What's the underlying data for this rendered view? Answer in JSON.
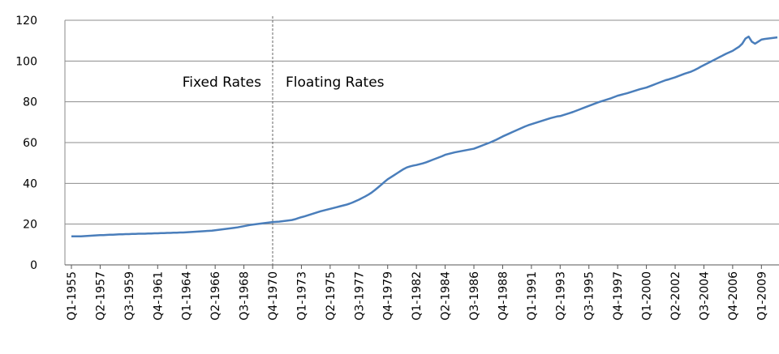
{
  "chart_data": {
    "type": "line",
    "categories": [
      "Q1-1955",
      null,
      null,
      null,
      null,
      null,
      null,
      null,
      null,
      "Q2-1957",
      null,
      null,
      null,
      null,
      null,
      null,
      null,
      null,
      "Q3-1959",
      null,
      null,
      null,
      null,
      null,
      null,
      null,
      null,
      "Q4-1961",
      null,
      null,
      null,
      null,
      null,
      null,
      null,
      null,
      "Q1-1964",
      null,
      null,
      null,
      null,
      null,
      null,
      null,
      null,
      "Q2-1966",
      null,
      null,
      null,
      null,
      null,
      null,
      null,
      null,
      "Q3-1968",
      null,
      null,
      null,
      null,
      null,
      null,
      null,
      null,
      "Q4-1970",
      null,
      null,
      null,
      null,
      null,
      null,
      null,
      null,
      "Q1-1973",
      null,
      null,
      null,
      null,
      null,
      null,
      null,
      null,
      "Q2-1975",
      null,
      null,
      null,
      null,
      null,
      null,
      null,
      null,
      "Q3-1977",
      null,
      null,
      null,
      null,
      null,
      null,
      null,
      null,
      "Q4-1979",
      null,
      null,
      null,
      null,
      null,
      null,
      null,
      null,
      "Q1-1982",
      null,
      null,
      null,
      null,
      null,
      null,
      null,
      null,
      "Q2-1984",
      null,
      null,
      null,
      null,
      null,
      null,
      null,
      null,
      "Q3-1986",
      null,
      null,
      null,
      null,
      null,
      null,
      null,
      null,
      "Q4-1988",
      null,
      null,
      null,
      null,
      null,
      null,
      null,
      null,
      "Q1-1991",
      null,
      null,
      null,
      null,
      null,
      null,
      null,
      null,
      "Q2-1993",
      null,
      null,
      null,
      null,
      null,
      null,
      null,
      null,
      "Q3-1995",
      null,
      null,
      null,
      null,
      null,
      null,
      null,
      null,
      "Q4-1997",
      null,
      null,
      null,
      null,
      null,
      null,
      null,
      null,
      "Q1-2000",
      null,
      null,
      null,
      null,
      null,
      null,
      null,
      null,
      "Q2-2002",
      null,
      null,
      null,
      null,
      null,
      null,
      null,
      null,
      "Q3-2004",
      null,
      null,
      null,
      null,
      null,
      null,
      null,
      null,
      "Q4-2006",
      null,
      null,
      null,
      null,
      null,
      null,
      null,
      null,
      "Q1-2009",
      null,
      null,
      null,
      null,
      null
    ],
    "values": [
      14.0,
      14.0,
      14.0,
      14.0,
      14.1,
      14.2,
      14.3,
      14.4,
      14.5,
      14.6,
      14.6,
      14.7,
      14.8,
      14.8,
      14.9,
      15.0,
      15.0,
      15.1,
      15.1,
      15.2,
      15.2,
      15.3,
      15.3,
      15.3,
      15.4,
      15.4,
      15.5,
      15.5,
      15.6,
      15.6,
      15.7,
      15.7,
      15.8,
      15.8,
      15.9,
      15.9,
      16.0,
      16.1,
      16.2,
      16.3,
      16.4,
      16.5,
      16.6,
      16.7,
      16.8,
      17.0,
      17.2,
      17.4,
      17.6,
      17.8,
      18.0,
      18.2,
      18.4,
      18.7,
      19.0,
      19.3,
      19.6,
      19.8,
      20.0,
      20.2,
      20.4,
      20.6,
      20.8,
      21.0,
      21.1,
      21.2,
      21.4,
      21.6,
      21.8,
      22.0,
      22.4,
      22.9,
      23.4,
      23.8,
      24.3,
      24.8,
      25.3,
      25.8,
      26.3,
      26.7,
      27.1,
      27.5,
      27.9,
      28.3,
      28.7,
      29.1,
      29.5,
      30.0,
      30.6,
      31.3,
      32.0,
      32.8,
      33.6,
      34.5,
      35.5,
      36.7,
      38.0,
      39.3,
      40.7,
      42.0,
      43.0,
      44.0,
      45.0,
      46.0,
      47.0,
      47.8,
      48.3,
      48.7,
      49.0,
      49.4,
      49.8,
      50.3,
      50.9,
      51.5,
      52.1,
      52.7,
      53.3,
      54.0,
      54.4,
      54.8,
      55.2,
      55.5,
      55.8,
      56.1,
      56.4,
      56.7,
      57.0,
      57.6,
      58.2,
      58.8,
      59.4,
      60.0,
      60.7,
      61.4,
      62.2,
      63.0,
      63.7,
      64.4,
      65.1,
      65.8,
      66.5,
      67.2,
      67.9,
      68.5,
      69.0,
      69.5,
      70.0,
      70.5,
      71.0,
      71.5,
      72.0,
      72.4,
      72.8,
      73.0,
      73.5,
      74.0,
      74.5,
      75.0,
      75.6,
      76.2,
      76.8,
      77.4,
      78.0,
      78.6,
      79.2,
      79.8,
      80.3,
      80.8,
      81.3,
      81.8,
      82.4,
      83.0,
      83.4,
      83.8,
      84.2,
      84.7,
      85.2,
      85.7,
      86.2,
      86.6,
      87.0,
      87.6,
      88.2,
      88.8,
      89.4,
      90.0,
      90.6,
      91.0,
      91.5,
      92.0,
      92.6,
      93.2,
      93.8,
      94.3,
      94.8,
      95.5,
      96.3,
      97.2,
      98.0,
      98.8,
      99.6,
      100.4,
      101.2,
      102.0,
      102.8,
      103.6,
      104.3,
      105.0,
      106.0,
      107.0,
      108.5,
      111.0,
      112.0,
      109.5,
      108.5,
      109.5,
      110.5,
      110.8,
      111.0,
      111.2,
      111.4,
      111.6
    ],
    "color": "#4a7ebb",
    "ylim": [
      0,
      120
    ],
    "yticks": [
      0,
      20,
      40,
      60,
      80,
      100,
      120
    ],
    "grid": true,
    "divider": "Q4-1970",
    "annotations": [
      "Fixed Rates",
      "Floating Rates"
    ]
  }
}
